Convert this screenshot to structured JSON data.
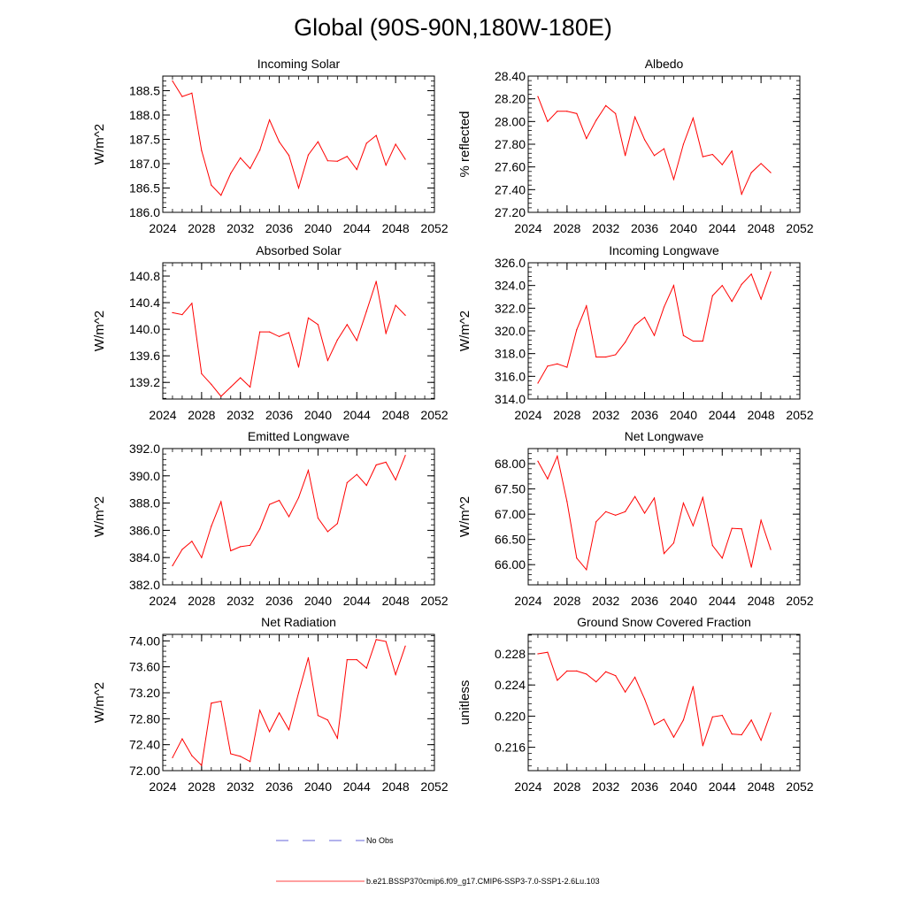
{
  "title": "Global (90S-90N,180W-180E)",
  "colors": {
    "model": "#ff0000",
    "obs": "#3333cc",
    "axis": "#000000"
  },
  "legend": {
    "obs_label": "No Obs",
    "model_label": "b.e21.BSSP370cmip6.f09_g17.CMIP6-SSP3-7.0-SSP1-2.6Lu.103"
  },
  "chart_data": [
    {
      "type": "line",
      "title": "Incoming Solar",
      "ylabel": "W/m^2",
      "xlim": [
        2024,
        2052
      ],
      "ylim": [
        186.0,
        188.8
      ],
      "yticks": [
        186.0,
        186.5,
        187.0,
        187.5,
        188.0,
        188.5
      ],
      "ytick_labels": [
        "186.0",
        "186.5",
        "187.0",
        "187.5",
        "188.0",
        "188.5"
      ],
      "xticks": [
        2024,
        2028,
        2032,
        2036,
        2040,
        2044,
        2048,
        2052
      ],
      "series": [
        {
          "name": "model",
          "x": [
            2025,
            2026,
            2027,
            2028,
            2029,
            2030,
            2031,
            2032,
            2033,
            2034,
            2035,
            2036,
            2037,
            2038,
            2039,
            2040,
            2041,
            2042,
            2043,
            2044,
            2045,
            2046,
            2047,
            2048,
            2049
          ],
          "values": [
            188.7,
            188.38,
            188.45,
            187.27,
            186.56,
            186.35,
            186.8,
            187.12,
            186.9,
            187.28,
            187.9,
            187.45,
            187.17,
            186.5,
            187.18,
            187.45,
            187.06,
            187.05,
            187.15,
            186.88,
            187.42,
            187.58,
            186.97,
            187.4,
            187.09
          ]
        }
      ]
    },
    {
      "type": "line",
      "title": "Albedo",
      "ylabel": "% reflected",
      "xlim": [
        2024,
        2052
      ],
      "ylim": [
        27.2,
        28.4
      ],
      "yticks": [
        27.2,
        27.4,
        27.6,
        27.8,
        28.0,
        28.2,
        28.4
      ],
      "ytick_labels": [
        "27.20",
        "27.40",
        "27.60",
        "27.80",
        "28.00",
        "28.20",
        "28.40"
      ],
      "xticks": [
        2024,
        2028,
        2032,
        2036,
        2040,
        2044,
        2048,
        2052
      ],
      "series": [
        {
          "name": "model",
          "x": [
            2025,
            2026,
            2027,
            2028,
            2029,
            2030,
            2031,
            2032,
            2033,
            2034,
            2035,
            2036,
            2037,
            2038,
            2039,
            2040,
            2041,
            2042,
            2043,
            2044,
            2045,
            2046,
            2047,
            2048,
            2049
          ],
          "values": [
            28.22,
            28.0,
            28.09,
            28.09,
            28.07,
            27.85,
            28.01,
            28.14,
            28.07,
            27.7,
            28.04,
            27.84,
            27.7,
            27.76,
            27.49,
            27.8,
            28.03,
            27.69,
            27.71,
            27.62,
            27.74,
            27.36,
            27.55,
            27.63,
            27.55
          ]
        }
      ]
    },
    {
      "type": "line",
      "title": "Absorbed Solar",
      "ylabel": "W/m^2",
      "xlim": [
        2024,
        2052
      ],
      "ylim": [
        138.95,
        141.0
      ],
      "yticks": [
        139.2,
        139.6,
        140.0,
        140.4,
        140.8
      ],
      "ytick_labels": [
        "139.2",
        "139.6",
        "140.0",
        "140.4",
        "140.8"
      ],
      "xticks": [
        2024,
        2028,
        2032,
        2036,
        2040,
        2044,
        2048,
        2052
      ],
      "series": [
        {
          "name": "model",
          "x": [
            2025,
            2026,
            2027,
            2028,
            2029,
            2030,
            2031,
            2032,
            2033,
            2034,
            2035,
            2036,
            2037,
            2038,
            2039,
            2040,
            2041,
            2042,
            2043,
            2044,
            2045,
            2046,
            2047,
            2048,
            2049
          ],
          "values": [
            140.25,
            140.22,
            140.39,
            139.33,
            139.17,
            138.99,
            139.13,
            139.27,
            139.13,
            139.96,
            139.96,
            139.89,
            139.95,
            139.43,
            140.17,
            140.07,
            139.53,
            139.84,
            140.07,
            139.83,
            140.27,
            140.72,
            139.94,
            140.36,
            140.21
          ]
        }
      ]
    },
    {
      "type": "line",
      "title": "Incoming Longwave",
      "ylabel": "W/m^2",
      "xlim": [
        2024,
        2052
      ],
      "ylim": [
        314.0,
        326.0
      ],
      "yticks": [
        314.0,
        316.0,
        318.0,
        320.0,
        322.0,
        324.0,
        326.0
      ],
      "ytick_labels": [
        "314.0",
        "316.0",
        "318.0",
        "320.0",
        "322.0",
        "324.0",
        "326.0"
      ],
      "xticks": [
        2024,
        2028,
        2032,
        2036,
        2040,
        2044,
        2048,
        2052
      ],
      "series": [
        {
          "name": "model",
          "x": [
            2025,
            2026,
            2027,
            2028,
            2029,
            2030,
            2031,
            2032,
            2033,
            2034,
            2035,
            2036,
            2037,
            2038,
            2039,
            2040,
            2041,
            2042,
            2043,
            2044,
            2045,
            2046,
            2047,
            2048,
            2049
          ],
          "values": [
            315.4,
            316.9,
            317.1,
            316.8,
            320.1,
            322.2,
            317.7,
            317.7,
            317.9,
            319.0,
            320.5,
            321.2,
            319.6,
            322.1,
            324.0,
            319.6,
            319.1,
            319.1,
            323.1,
            324.0,
            322.6,
            324.1,
            325.0,
            322.8,
            325.2
          ]
        }
      ]
    },
    {
      "type": "line",
      "title": "Emitted Longwave",
      "ylabel": "W/m^2",
      "xlim": [
        2024,
        2052
      ],
      "ylim": [
        382.0,
        392.0
      ],
      "yticks": [
        382.0,
        384.0,
        386.0,
        388.0,
        390.0,
        392.0
      ],
      "ytick_labels": [
        "382.0",
        "384.0",
        "386.0",
        "388.0",
        "390.0",
        "392.0"
      ],
      "xticks": [
        2024,
        2028,
        2032,
        2036,
        2040,
        2044,
        2048,
        2052
      ],
      "series": [
        {
          "name": "model",
          "x": [
            2025,
            2026,
            2027,
            2028,
            2029,
            2030,
            2031,
            2032,
            2033,
            2034,
            2035,
            2036,
            2037,
            2038,
            2039,
            2040,
            2041,
            2042,
            2043,
            2044,
            2045,
            2046,
            2047,
            2048,
            2049
          ],
          "values": [
            383.4,
            384.6,
            385.2,
            384.0,
            386.3,
            388.1,
            384.5,
            384.8,
            384.9,
            386.1,
            387.9,
            388.2,
            387.0,
            388.4,
            390.4,
            386.9,
            385.9,
            386.5,
            389.5,
            390.1,
            389.3,
            390.8,
            391.0,
            389.7,
            391.5
          ]
        }
      ]
    },
    {
      "type": "line",
      "title": "Net Longwave",
      "ylabel": "W/m^2",
      "xlim": [
        2024,
        2052
      ],
      "ylim": [
        65.6,
        68.3
      ],
      "yticks": [
        66.0,
        66.5,
        67.0,
        67.5,
        68.0
      ],
      "ytick_labels": [
        "66.00",
        "66.50",
        "67.00",
        "67.50",
        "68.00"
      ],
      "xticks": [
        2024,
        2028,
        2032,
        2036,
        2040,
        2044,
        2048,
        2052
      ],
      "series": [
        {
          "name": "model",
          "x": [
            2025,
            2026,
            2027,
            2028,
            2029,
            2030,
            2031,
            2032,
            2033,
            2034,
            2035,
            2036,
            2037,
            2038,
            2039,
            2040,
            2041,
            2042,
            2043,
            2044,
            2045,
            2046,
            2047,
            2048,
            2049
          ],
          "values": [
            68.05,
            67.7,
            68.15,
            67.25,
            66.13,
            65.9,
            66.85,
            67.05,
            66.98,
            67.05,
            67.35,
            67.02,
            67.32,
            66.22,
            66.43,
            67.22,
            66.77,
            67.33,
            66.38,
            66.13,
            66.72,
            66.71,
            65.95,
            66.88,
            66.3
          ]
        }
      ]
    },
    {
      "type": "line",
      "title": "Net Radiation",
      "ylabel": "W/m^2",
      "xlim": [
        2024,
        2052
      ],
      "ylim": [
        72.0,
        74.1
      ],
      "yticks": [
        72.0,
        72.4,
        72.8,
        73.2,
        73.6,
        74.0
      ],
      "ytick_labels": [
        "72.00",
        "72.40",
        "72.80",
        "73.20",
        "73.60",
        "74.00"
      ],
      "xticks": [
        2024,
        2028,
        2032,
        2036,
        2040,
        2044,
        2048,
        2052
      ],
      "series": [
        {
          "name": "model",
          "x": [
            2025,
            2026,
            2027,
            2028,
            2029,
            2030,
            2031,
            2032,
            2033,
            2034,
            2035,
            2036,
            2037,
            2038,
            2039,
            2040,
            2041,
            2042,
            2043,
            2044,
            2045,
            2046,
            2047,
            2048,
            2049
          ],
          "values": [
            72.2,
            72.49,
            72.23,
            72.08,
            73.04,
            73.07,
            72.26,
            72.22,
            72.14,
            72.93,
            72.6,
            72.89,
            72.63,
            73.2,
            73.74,
            72.85,
            72.78,
            72.5,
            73.71,
            73.71,
            73.58,
            74.02,
            73.99,
            73.48,
            73.92
          ]
        }
      ]
    },
    {
      "type": "line",
      "title": "Ground Snow Covered Fraction",
      "ylabel": "unitless",
      "xlim": [
        2024,
        2052
      ],
      "ylim": [
        0.213,
        0.2305
      ],
      "yticks": [
        0.216,
        0.22,
        0.224,
        0.228
      ],
      "ytick_labels": [
        "0.216",
        "0.220",
        "0.224",
        "0.228"
      ],
      "xticks": [
        2024,
        2028,
        2032,
        2036,
        2040,
        2044,
        2048,
        2052
      ],
      "series": [
        {
          "name": "model",
          "x": [
            2025,
            2026,
            2027,
            2028,
            2029,
            2030,
            2031,
            2032,
            2033,
            2034,
            2035,
            2036,
            2037,
            2038,
            2039,
            2040,
            2041,
            2042,
            2043,
            2044,
            2045,
            2046,
            2047,
            2048,
            2049
          ],
          "values": [
            0.228,
            0.2282,
            0.2246,
            0.2258,
            0.2258,
            0.2254,
            0.2244,
            0.2257,
            0.2252,
            0.2231,
            0.225,
            0.2222,
            0.2189,
            0.2196,
            0.2173,
            0.2195,
            0.2238,
            0.2162,
            0.2199,
            0.2201,
            0.2177,
            0.2176,
            0.2195,
            0.2169,
            0.2204
          ]
        }
      ]
    }
  ]
}
